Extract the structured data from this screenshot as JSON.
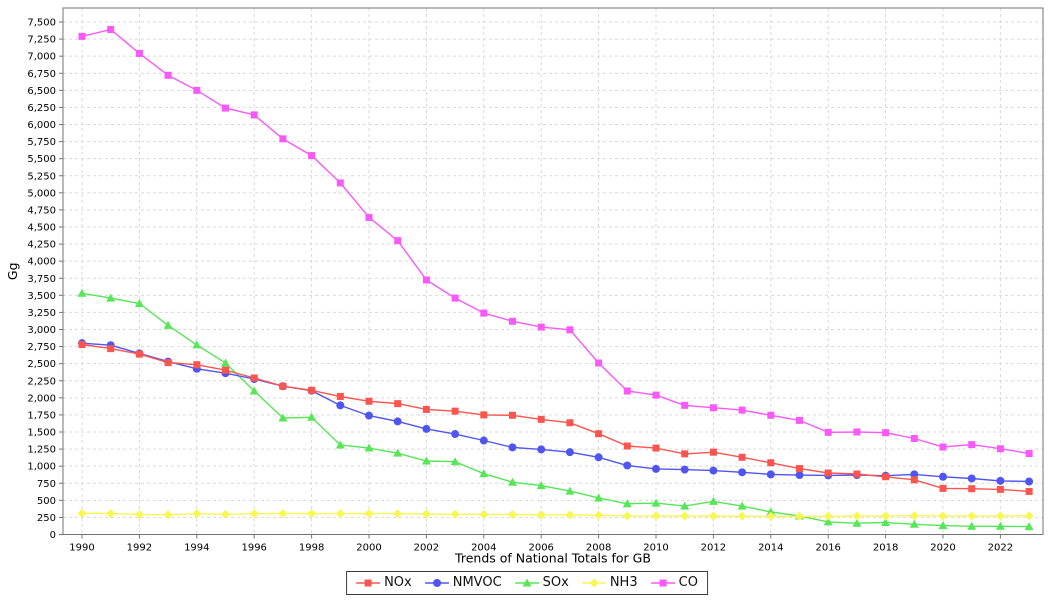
{
  "chart_data": {
    "type": "line",
    "title": "Trends of National Totals for GB",
    "xlabel": "Trends of National Totals for GB",
    "ylabel": "Gg",
    "legend_position": "bottom",
    "grid": true,
    "ylim": [
      0,
      7500
    ],
    "ytick_step": 250,
    "years": [
      1990,
      1991,
      1992,
      1993,
      1994,
      1995,
      1996,
      1997,
      1998,
      1999,
      2000,
      2001,
      2002,
      2003,
      2004,
      2005,
      2006,
      2007,
      2008,
      2009,
      2010,
      2011,
      2012,
      2013,
      2014,
      2015,
      2016,
      2017,
      2018,
      2019,
      2020,
      2021,
      2022,
      2023
    ],
    "xtick_labels": [
      "1990",
      "1992",
      "1994",
      "1996",
      "1998",
      "2000",
      "2002",
      "2004",
      "2006",
      "2008",
      "2010",
      "2012",
      "2014",
      "2016",
      "2018",
      "2020",
      "2022"
    ],
    "ytick_labels": [
      "0",
      "250",
      "500",
      "750",
      "1,000",
      "1,250",
      "1,500",
      "1,750",
      "2,000",
      "2,250",
      "2,500",
      "2,750",
      "3,000",
      "3,250",
      "3,500",
      "3,750",
      "4,000",
      "4,250",
      "4,500",
      "4,750",
      "5,000",
      "5,250",
      "5,500",
      "5,750",
      "6,000",
      "6,250",
      "6,500",
      "6,750",
      "7,000",
      "7,250",
      "7,500"
    ],
    "series": [
      {
        "name": "NOx",
        "marker": "square",
        "color": "#fa554f",
        "values": [
          2780,
          2720,
          2640,
          2515,
          2485,
          2405,
          2290,
          2170,
          2110,
          2020,
          1950,
          1915,
          1830,
          1805,
          1750,
          1745,
          1685,
          1635,
          1475,
          1295,
          1265,
          1180,
          1205,
          1130,
          1050,
          965,
          900,
          885,
          845,
          800,
          675,
          670,
          660,
          630
        ]
      },
      {
        "name": "NMVOC",
        "marker": "circle",
        "color": "#5055f2",
        "values": [
          2800,
          2770,
          2650,
          2530,
          2425,
          2360,
          2275,
          2170,
          2105,
          1890,
          1740,
          1655,
          1545,
          1470,
          1375,
          1275,
          1245,
          1205,
          1130,
          1010,
          960,
          950,
          935,
          910,
          880,
          870,
          865,
          870,
          860,
          880,
          845,
          820,
          785,
          775
        ]
      },
      {
        "name": "SOx",
        "marker": "triangle",
        "color": "#57e657",
        "values": [
          3530,
          3460,
          3380,
          3060,
          2775,
          2510,
          2100,
          1705,
          1715,
          1310,
          1265,
          1190,
          1075,
          1065,
          890,
          765,
          715,
          635,
          535,
          450,
          460,
          415,
          485,
          415,
          330,
          270,
          185,
          165,
          175,
          150,
          130,
          120,
          120,
          115
        ]
      },
      {
        "name": "NH3",
        "marker": "diamond",
        "color": "#f8f852",
        "values": [
          310,
          308,
          292,
          290,
          305,
          295,
          305,
          308,
          306,
          305,
          307,
          305,
          300,
          296,
          295,
          292,
          288,
          285,
          282,
          272,
          272,
          270,
          270,
          268,
          268,
          265,
          268,
          270,
          270,
          275,
          272,
          272,
          270,
          275
        ]
      },
      {
        "name": "CO",
        "marker": "square",
        "color": "#fa58fa",
        "values": [
          7290,
          7390,
          7040,
          6720,
          6500,
          6240,
          6140,
          5790,
          5545,
          5145,
          4640,
          4300,
          3725,
          3460,
          3240,
          3120,
          3035,
          2995,
          2510,
          2100,
          2040,
          1890,
          1855,
          1820,
          1745,
          1670,
          1495,
          1500,
          1490,
          1405,
          1280,
          1315,
          1255,
          1185
        ]
      }
    ],
    "colors": {
      "grid": "#d9d9d9",
      "spine": "#737373",
      "tick_text": "#000000"
    }
  }
}
